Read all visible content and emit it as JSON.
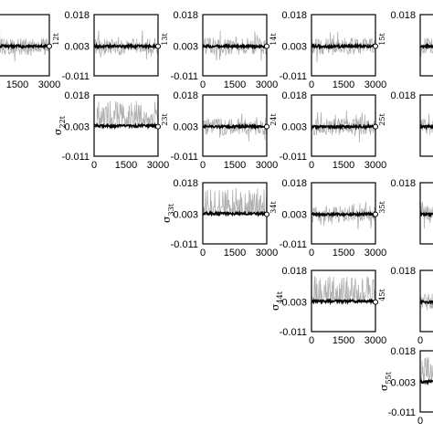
{
  "chart_data": [
    {
      "type": "line",
      "row": 1,
      "col": 1,
      "ylabel": "",
      "right_label": "12t",
      "xticks": [
        "1500",
        "3000"
      ],
      "ylim": [
        -0.011,
        0.018
      ],
      "xlim": [
        0,
        3000
      ],
      "yticks": [],
      "series": [
        {
          "values": [],
          "color": "#b0b0b0"
        },
        {
          "values": [],
          "color": "#000000"
        }
      ]
    },
    {
      "type": "line",
      "row": 1,
      "col": 2,
      "ylabel": "",
      "right_label": "13t",
      "xticks": [],
      "ylim": [
        -0.011,
        0.018
      ],
      "xlim": [
        0,
        3000
      ],
      "yticks": [
        "0.018",
        "0.003",
        "-0.011"
      ],
      "series": []
    },
    {
      "type": "line",
      "row": 1,
      "col": 3,
      "ylabel": "",
      "right_label": "14t",
      "xticks": [
        "0",
        "1500",
        "3000"
      ],
      "ylim": [
        -0.011,
        0.018
      ],
      "xlim": [
        0,
        3000
      ],
      "yticks": [
        "0.018",
        "0.003",
        "-0.011"
      ],
      "series": []
    },
    {
      "type": "line",
      "row": 1,
      "col": 4,
      "ylabel": "",
      "right_label": "15t",
      "xticks": [
        "0",
        "1500",
        "3000"
      ],
      "ylim": [
        -0.011,
        0.018
      ],
      "xlim": [
        0,
        3000
      ],
      "yticks": [
        "0.018",
        "0.003",
        "-0.011"
      ],
      "series": []
    },
    {
      "type": "line",
      "row": 1,
      "col": 5,
      "ylabel": "",
      "right_label": "",
      "xticks": [],
      "ylim": [
        -0.011,
        0.018
      ],
      "xlim": [
        0,
        3000
      ],
      "yticks": [
        "0.018"
      ],
      "series": []
    },
    {
      "type": "line",
      "row": 2,
      "col": 2,
      "ylabel": "σ",
      "ylabel_sub": "22t",
      "right_label": "23t",
      "xticks": [
        "0",
        "1500",
        "3000"
      ],
      "ylim": [
        -0.011,
        0.018
      ],
      "xlim": [
        0,
        3000
      ],
      "yticks": [
        "0.018",
        "0.003",
        "-0.011"
      ],
      "series": []
    },
    {
      "type": "line",
      "row": 2,
      "col": 3,
      "ylabel": "",
      "right_label": "24t",
      "xticks": [
        "0",
        "1500",
        "3000"
      ],
      "ylim": [
        -0.011,
        0.018
      ],
      "xlim": [
        0,
        3000
      ],
      "yticks": [
        "0.018",
        "0.003",
        "-0.011"
      ],
      "series": []
    },
    {
      "type": "line",
      "row": 2,
      "col": 4,
      "ylabel": "",
      "right_label": "25t",
      "xticks": [
        "0",
        "1500",
        "3000"
      ],
      "ylim": [
        -0.011,
        0.018
      ],
      "xlim": [
        0,
        3000
      ],
      "yticks": [
        "0.018",
        "0.003",
        "-0.011"
      ],
      "series": []
    },
    {
      "type": "line",
      "row": 2,
      "col": 5,
      "ylabel": "",
      "right_label": "",
      "xticks": [],
      "ylim": [
        -0.011,
        0.018
      ],
      "xlim": [
        0,
        3000
      ],
      "yticks": [
        "0.018"
      ],
      "series": []
    },
    {
      "type": "line",
      "row": 3,
      "col": 3,
      "ylabel": "σ",
      "ylabel_sub": "33t",
      "right_label": "34t",
      "xticks": [
        "0",
        "1500",
        "3000"
      ],
      "ylim": [
        -0.011,
        0.018
      ],
      "xlim": [
        0,
        3000
      ],
      "yticks": [
        "0.018",
        "0.003",
        "-0.011"
      ],
      "series": []
    },
    {
      "type": "line",
      "row": 3,
      "col": 4,
      "ylabel": "",
      "right_label": "35t",
      "xticks": [
        "0",
        "1500",
        "3000"
      ],
      "ylim": [
        -0.011,
        0.018
      ],
      "xlim": [
        0,
        3000
      ],
      "yticks": [
        "0.018",
        "0.003",
        "-0.011"
      ],
      "series": []
    },
    {
      "type": "line",
      "row": 3,
      "col": 5,
      "ylabel": "",
      "right_label": "",
      "xticks": [],
      "ylim": [
        -0.011,
        0.018
      ],
      "xlim": [
        0,
        3000
      ],
      "yticks": [
        "0.018"
      ],
      "series": []
    },
    {
      "type": "line",
      "row": 4,
      "col": 4,
      "ylabel": "σ",
      "ylabel_sub": "44t",
      "right_label": "45t",
      "xticks": [
        "0",
        "1500",
        "3000"
      ],
      "ylim": [
        -0.011,
        0.018
      ],
      "xlim": [
        0,
        3000
      ],
      "yticks": [
        "0.018",
        "0.003",
        "-0.011"
      ],
      "series": []
    },
    {
      "type": "line",
      "row": 4,
      "col": 5,
      "ylabel": "",
      "right_label": "",
      "xticks": [
        "0"
      ],
      "ylim": [
        -0.011,
        0.018
      ],
      "xlim": [
        0,
        3000
      ],
      "yticks": [
        "0.018"
      ],
      "series": []
    },
    {
      "type": "line",
      "row": 5,
      "col": 5,
      "ylabel": "σ",
      "ylabel_sub": "55t",
      "right_label": "",
      "xticks": [
        "0"
      ],
      "ylim": [
        -0.011,
        0.018
      ],
      "xlim": [
        0,
        3000
      ],
      "yticks": [
        "0.018",
        "0.003",
        "-0.011"
      ],
      "series": []
    }
  ],
  "colors": {
    "raw_trace": "#b0b0b0",
    "smoothed_trace": "#000000",
    "axes": "#000000"
  }
}
